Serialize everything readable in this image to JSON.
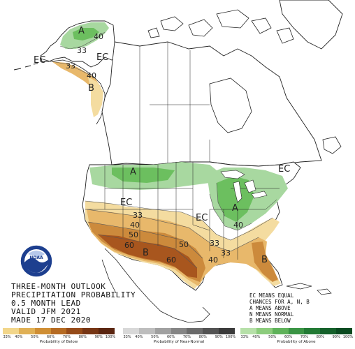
{
  "map": {
    "colors": {
      "above_40": "#a8d8a0",
      "above_50": "#6cbf5f",
      "below_33": "#f4dca0",
      "below_40": "#e8b86b",
      "below_50": "#cc8a3c",
      "below_60": "#a8561e",
      "land": "#ffffff",
      "outline": "#222222",
      "water": "#ffffff"
    },
    "region_labels": [
      {
        "name": "a-alaska",
        "text": "A"
      },
      {
        "name": "b-alaska",
        "text": "B"
      },
      {
        "name": "ec-alaska-west",
        "text": "EC"
      },
      {
        "name": "ec-alaska-central",
        "text": "EC"
      },
      {
        "name": "a-north-plains",
        "text": "A"
      },
      {
        "name": "a-ohio-valley",
        "text": "A"
      },
      {
        "name": "ec-west",
        "text": "EC"
      },
      {
        "name": "ec-central",
        "text": "EC"
      },
      {
        "name": "ec-northeast",
        "text": "EC"
      },
      {
        "name": "b-southwest",
        "text": "B"
      },
      {
        "name": "b-florida",
        "text": "B"
      }
    ],
    "contour_labels": [
      {
        "name": "ak-40-north",
        "text": "40"
      },
      {
        "name": "ak-33-north",
        "text": "33"
      },
      {
        "name": "ak-40-south",
        "text": "40"
      },
      {
        "name": "ak-33-south",
        "text": "33"
      },
      {
        "name": "conus-33-west",
        "text": "33"
      },
      {
        "name": "conus-40-west",
        "text": "40"
      },
      {
        "name": "conus-50-west",
        "text": "50"
      },
      {
        "name": "conus-60-west",
        "text": "60"
      },
      {
        "name": "conus-50-central",
        "text": "50"
      },
      {
        "name": "conus-60-texas",
        "text": "60"
      },
      {
        "name": "conus-33-south",
        "text": "33"
      },
      {
        "name": "conus-40-south",
        "text": "40"
      },
      {
        "name": "conus-33-se",
        "text": "33"
      },
      {
        "name": "conus-40-ohio",
        "text": "40"
      }
    ],
    "noaa_logo_text": "NOAA"
  },
  "title_block": {
    "line1": "THREE-MONTH OUTLOOK",
    "line2": "PRECIPITATION PROBABILITY",
    "line3": "0.5 MONTH LEAD",
    "line4": "VALID JFM 2021",
    "line5": "MADE 17 DEC 2020"
  },
  "key_block": {
    "line1": "EC MEANS EQUAL",
    "line2": "CHANCES FOR A, N, B",
    "line3": "A MEANS ABOVE",
    "line4": "N MEANS NORMAL",
    "line5": "B MEANS BELOW"
  },
  "legend": {
    "below": {
      "caption": "Probability of Below",
      "ticks": [
        "33%",
        "40%",
        "50%",
        "60%",
        "70%",
        "80%",
        "90%",
        "100%"
      ],
      "colors": [
        "#f2d68a",
        "#e0b055",
        "#cf8e34",
        "#b56a22",
        "#954a18",
        "#763514",
        "#5a2510"
      ]
    },
    "normal": {
      "caption": "Probability of Near-Normal",
      "ticks": [
        "33%",
        "40%",
        "50%",
        "60%",
        "70%",
        "80%",
        "90%",
        "100%"
      ],
      "colors": [
        "#d8d8d8",
        "#bdbdbd",
        "#a0a0a0",
        "#858585",
        "#6b6b6b",
        "#525252",
        "#3a3a3a"
      ]
    },
    "above": {
      "caption": "Probability of Above",
      "ticks": [
        "33%",
        "40%",
        "50%",
        "60%",
        "70%",
        "80%",
        "90%",
        "100%"
      ],
      "colors": [
        "#b6e0a8",
        "#8ccc7c",
        "#5fb25a",
        "#3a9444",
        "#227a34",
        "#14602a",
        "#0a4a20"
      ]
    }
  }
}
